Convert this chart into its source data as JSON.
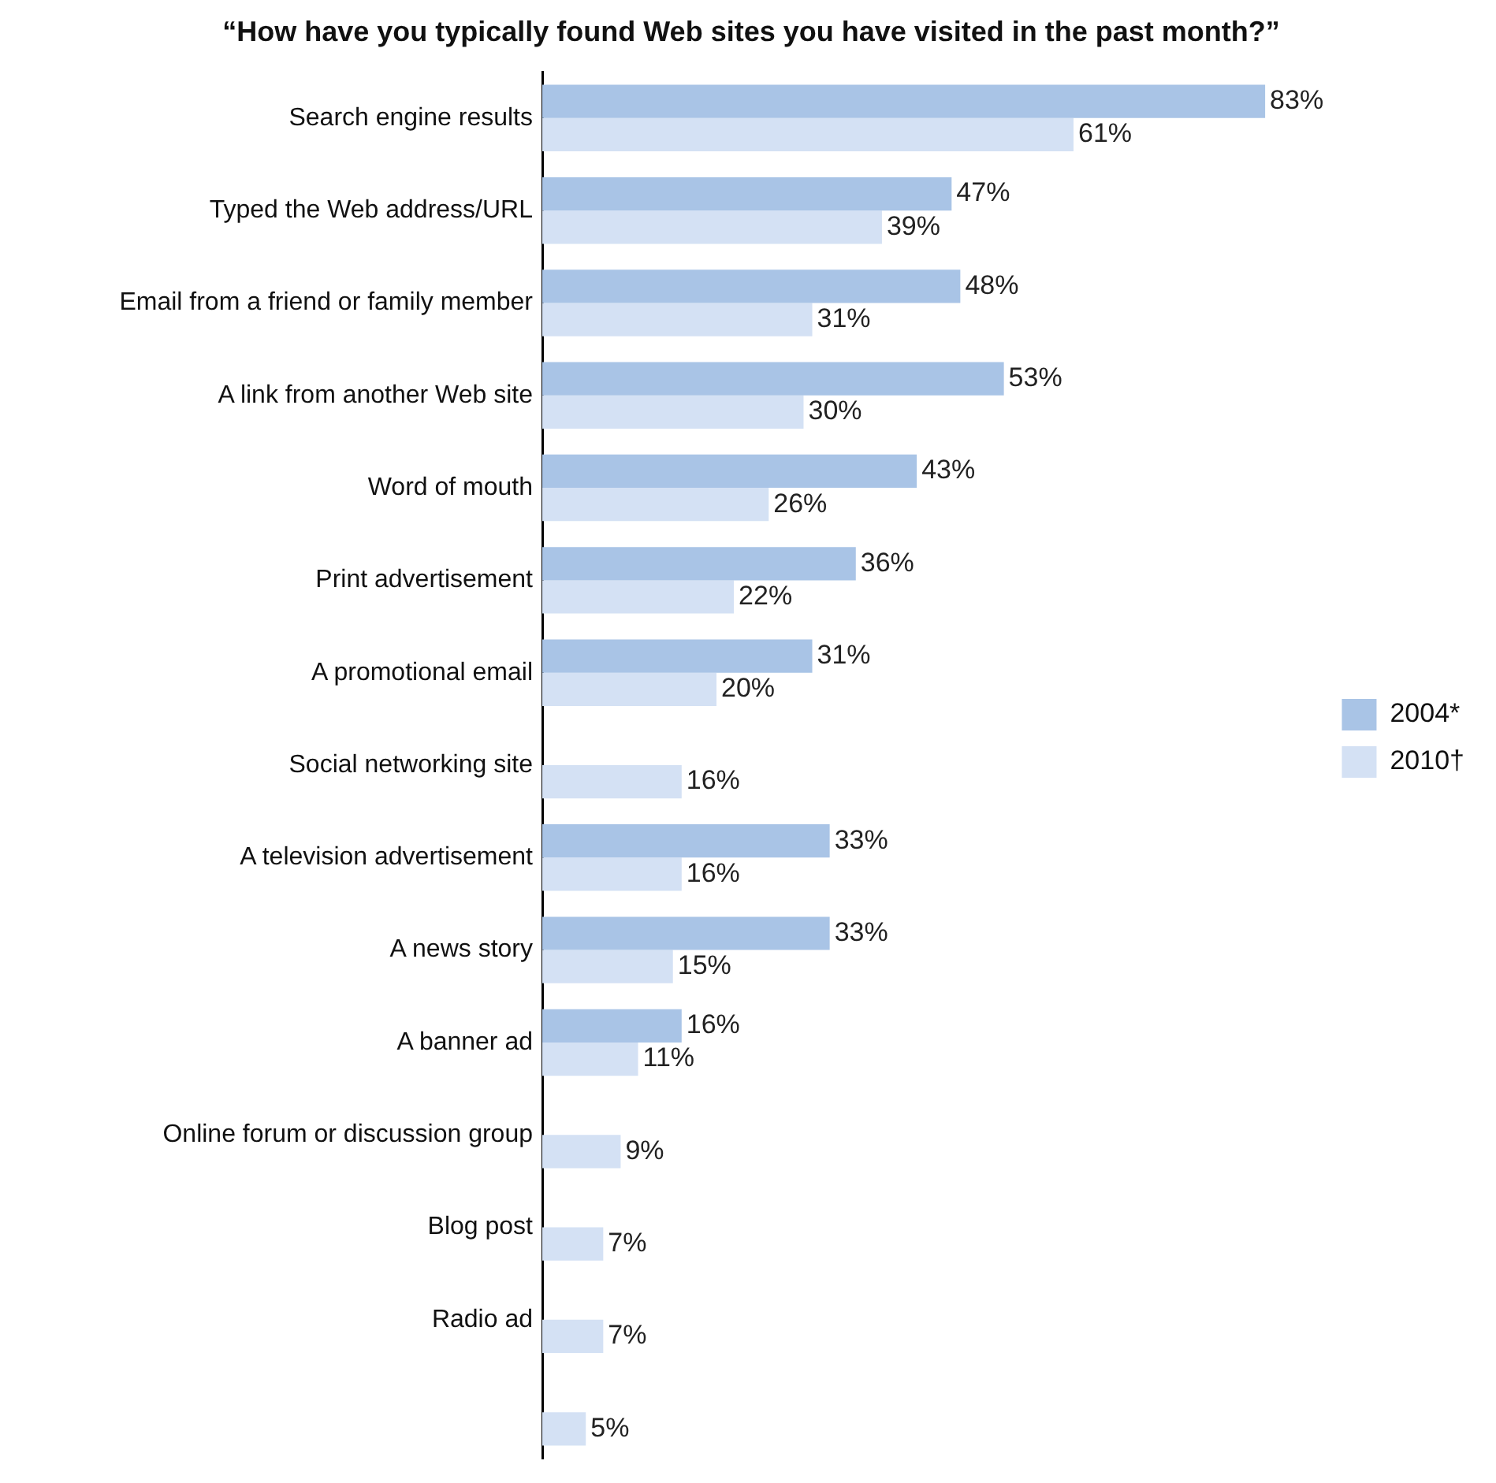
{
  "chart_data": {
    "type": "bar",
    "orientation": "horizontal",
    "title": "“How have you typically found Web sites you have visited in the past month?”",
    "categories": [
      "Search engine results",
      "Typed the Web address/URL",
      "Email from a friend or family member",
      "A link from another Web site",
      "Word of mouth",
      "Print advertisement",
      "A promotional email",
      "Social networking site",
      "A television advertisement",
      "A news story",
      "A banner ad",
      "Online forum or discussion group",
      "Blog post",
      "Radio ad",
      null
    ],
    "series": [
      {
        "name": "2004*",
        "color": "#a9c4e6",
        "values": [
          83,
          47,
          48,
          53,
          43,
          36,
          31,
          null,
          33,
          33,
          16,
          null,
          null,
          null,
          null
        ],
        "value_labels": [
          "83%",
          "47%",
          "48%",
          "53%",
          "43%",
          "36%",
          "31%",
          null,
          "33%",
          "33%",
          "16%",
          null,
          null,
          null,
          null
        ]
      },
      {
        "name": "2010†",
        "color": "#d4e1f4",
        "values": [
          61,
          39,
          31,
          30,
          26,
          22,
          20,
          16,
          16,
          15,
          11,
          9,
          7,
          7,
          5
        ],
        "value_labels": [
          "61%",
          "39%",
          "31%",
          "30%",
          "26%",
          "22%",
          "20%",
          "16%",
          "16%",
          "15%",
          "11%",
          "9%",
          "7%",
          "7%",
          "5%"
        ]
      }
    ],
    "legend": "right"
  }
}
